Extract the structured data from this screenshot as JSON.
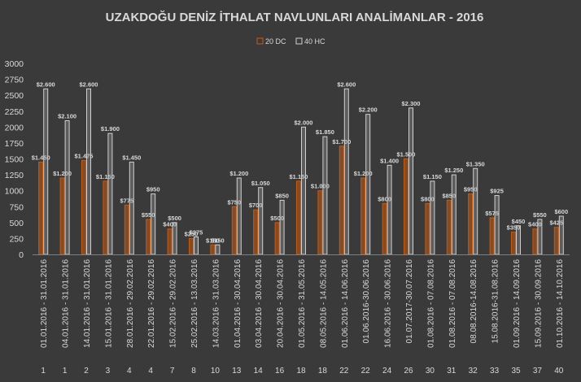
{
  "chart_data": {
    "type": "bar",
    "title": "UZAKDOĞU DENİZ İTHALAT NAVLUNLARI ANALİMANLAR - 2016",
    "xlabel": "",
    "ylabel": "",
    "ylim": [
      0,
      3000
    ],
    "yticks": [
      "0",
      "250",
      "500",
      "750",
      "1000",
      "1250",
      "1500",
      "1750",
      "2000",
      "2250",
      "2500",
      "2750",
      "3000"
    ],
    "grid": false,
    "legend_position": "top",
    "categories": [
      "01.01.2016 - 31.01.2016",
      "04.01.2016 - 31.01.2016",
      "14.01.2016 - 31.01.2016",
      "15.01.2016 - 31.01.2016",
      "28.01.2016 - 29.02.2016",
      "22.01.2016 - 29.02.2016",
      "15.02.2016 - 29.02.2016",
      "25.02.2016 - 13.03.2016",
      "14.03.2016 - 31.03.2016",
      "01.04.2016 - 30.04.2016",
      "03.04.2016 - 30.04.2016",
      "20.04.2016 - 30.04.2016",
      "01.05.2016 - 31.05.2016",
      "08.05.2016 - 14.05.2016",
      "01.06.2016 - 14.06.2016",
      "01.06.2016-30.06.2016",
      "16.06.2016 - 30.06.2016",
      "01.07.2017-30.07.2016",
      "01.08.2016 - 07.08.2016",
      "01.08.2016 - 07.08.2016",
      "08.08.2016-14.08.2016",
      "15.08.2016-31.08.2016",
      "01.09.2016 - 14.09.2016",
      "15.09.2016 - 30.09.2016",
      "01.10.2016 - 14.10.2016"
    ],
    "group_labels": [
      "1",
      "1",
      "2",
      "3",
      "4",
      "4",
      "7",
      "8",
      "10",
      "13",
      "14",
      "16",
      "18",
      "18",
      "22",
      "22",
      "24",
      "26",
      "30",
      "31",
      "32",
      "33",
      "35",
      "37",
      "40"
    ],
    "series": [
      {
        "name": "20 DC",
        "color": "#c55a11",
        "values": [
          1450,
          1200,
          1475,
          1150,
          775,
          550,
          400,
          250,
          150,
          750,
          700,
          500,
          1150,
          1000,
          1700,
          1200,
          800,
          1500,
          800,
          850,
          950,
          575,
          350,
          400,
          425
        ],
        "labels": [
          "$1.450",
          "$1.200",
          "$1.475",
          "$1.150",
          "$775",
          "$550",
          "$400",
          "$250",
          "$150",
          "$750",
          "$700",
          "$500",
          "$1.150",
          "$1.000",
          "$1.700",
          "$1.200",
          "$800",
          "$1.500",
          "$800",
          "$850",
          "$950",
          "$575",
          "$350",
          "$400",
          "$425"
        ]
      },
      {
        "name": "40 HC",
        "color": "#d0d0d0",
        "values": [
          2600,
          2100,
          2600,
          1900,
          1450,
          950,
          500,
          275,
          150,
          1200,
          1050,
          850,
          2000,
          1850,
          2600,
          2200,
          1400,
          2300,
          1150,
          1250,
          1350,
          925,
          450,
          550,
          600
        ],
        "labels": [
          "$2.600",
          "$2.100",
          "$2.600",
          "$1.900",
          "$1.450",
          "$950",
          "$500",
          "$275",
          "$150",
          "$1.200",
          "$1.050",
          "$850",
          "$2.000",
          "$1.850",
          "$2.600",
          "$2.200",
          "$1.400",
          "$2.300",
          "$1.150",
          "$1.250",
          "$1.350",
          "$925",
          "$450",
          "$550",
          "$600"
        ]
      }
    ],
    "colors": {
      "background": "#3a3a3a",
      "text": "#d9d9d9",
      "title": "#d9d9d9"
    }
  }
}
